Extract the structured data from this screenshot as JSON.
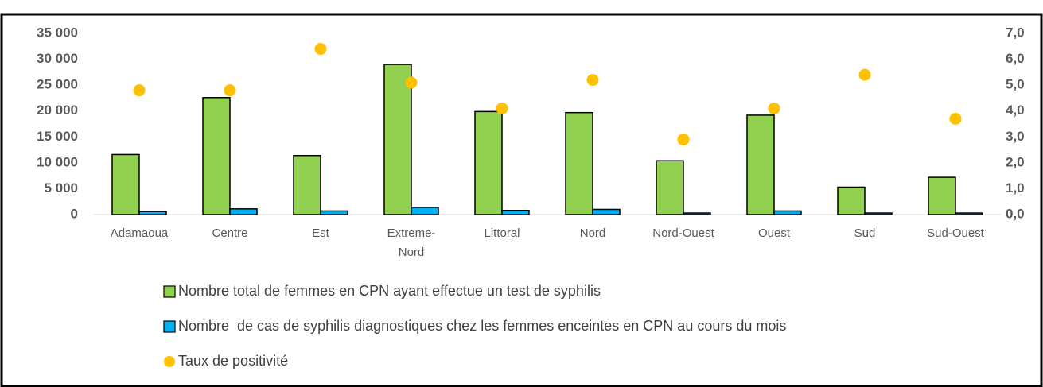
{
  "chart_data": {
    "type": "bar",
    "categories": [
      "Adamaoua",
      "Centre",
      "Est",
      "Extreme-Nord",
      "Littoral",
      "Nord",
      "Nord-Ouest",
      "Ouest",
      "Sud",
      "Sud-Ouest"
    ],
    "series": [
      {
        "name": "Nombre total de femmes en CPN ayant effectue un test de syphilis",
        "type": "bar",
        "color": "#92d050",
        "values": [
          11600,
          22600,
          11400,
          29000,
          19900,
          19700,
          10400,
          19200,
          5300,
          7200
        ]
      },
      {
        "name": "Nombre  de cas de syphilis diagnostiques chez les femmes enceintes en CPN au cours du mois",
        "type": "bar",
        "color": "#00b0f0",
        "values": [
          600,
          1100,
          700,
          1400,
          800,
          1000,
          300,
          700,
          300,
          300
        ]
      },
      {
        "name": "Taux de positivité",
        "type": "scatter",
        "axis": "y2",
        "color": "#ffc000",
        "values": [
          4.8,
          4.8,
          6.4,
          5.1,
          4.1,
          5.2,
          2.9,
          4.1,
          5.4,
          3.7
        ]
      }
    ],
    "ylim": [
      0,
      35000
    ],
    "yticks": [
      0,
      {
        "value": 5000,
        "label": "5 000"
      },
      {
        "value": 10000,
        "label": "10 000"
      },
      {
        "value": 15000,
        "label": "15 000"
      },
      {
        "value": 20000,
        "label": "20 000"
      },
      {
        "value": 25000,
        "label": "25 000"
      },
      {
        "value": 30000,
        "label": "30 000"
      },
      {
        "value": 35000,
        "label": "35 000"
      }
    ],
    "y2lim": [
      0,
      7
    ],
    "y2ticks": [
      {
        "value": 0,
        "label": "0,0"
      },
      {
        "value": 1,
        "label": "1,0"
      },
      {
        "value": 2,
        "label": "2,0"
      },
      {
        "value": 3,
        "label": "3,0"
      },
      {
        "value": 4,
        "label": "4,0"
      },
      {
        "value": 5,
        "label": "5,0"
      },
      {
        "value": 6,
        "label": "6,0"
      },
      {
        "value": 7,
        "label": "7,0"
      }
    ],
    "grid": false,
    "legend": "bottom"
  }
}
